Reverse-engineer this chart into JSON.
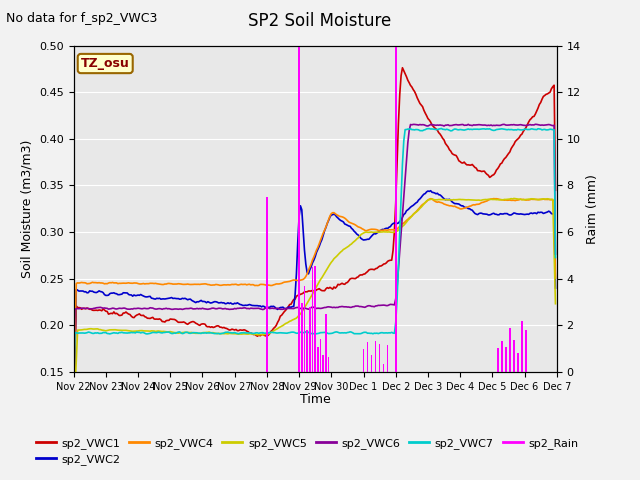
{
  "title": "SP2 Soil Moisture",
  "subtitle": "No data for f_sp2_VWC3",
  "xlabel": "Time",
  "ylabel_left": "Soil Moisture (m3/m3)",
  "ylabel_right": "Raim (mm)",
  "ylim_left": [
    0.15,
    0.5
  ],
  "ylim_right": [
    0,
    14
  ],
  "yticks_left": [
    0.15,
    0.2,
    0.25,
    0.3,
    0.35,
    0.4,
    0.45,
    0.5
  ],
  "yticks_right": [
    0,
    2,
    4,
    6,
    8,
    10,
    12,
    14
  ],
  "fig_facecolor": "#f2f2f2",
  "ax_facecolor": "#e8e8e8",
  "grid_color": "#ffffff",
  "tz_label": "TZ_osu",
  "tz_facecolor": "#ffffcc",
  "tz_edgecolor": "#996600",
  "tz_textcolor": "#880000",
  "colors": {
    "vwc1": "#cc0000",
    "vwc2": "#0000cc",
    "vwc4": "#ff8800",
    "vwc5": "#cccc00",
    "vwc6": "#880099",
    "vwc7": "#00cccc",
    "rain": "#ff00ff"
  },
  "lw": 1.2,
  "tick_fontsize": 8,
  "label_fontsize": 9,
  "title_fontsize": 12,
  "subtitle_fontsize": 9
}
